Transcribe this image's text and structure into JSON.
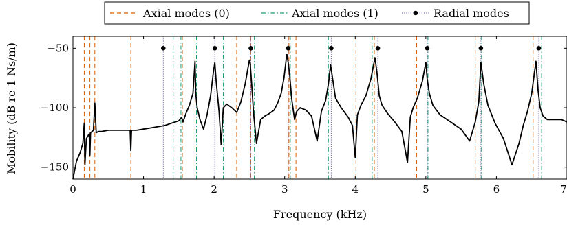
{
  "chart_data": {
    "type": "line",
    "title": "",
    "xlabel": "Frequency (kHz)",
    "ylabel": "Mobility (dB re 1 Ns/m)",
    "xlim": [
      0,
      7
    ],
    "ylim": [
      -160,
      -40
    ],
    "xticks": [
      0,
      1,
      2,
      3,
      4,
      5,
      6,
      7
    ],
    "xtick_labels": [
      "0",
      "1",
      "2",
      "3",
      "4",
      "5",
      "6",
      "7"
    ],
    "yticks": [
      -150,
      -100,
      -50
    ],
    "ytick_labels": [
      "−150",
      "−100",
      "−50"
    ],
    "grid": false,
    "legend": {
      "placement": "top-center",
      "entries": [
        {
          "label": "Axial modes (0)",
          "style": "dashed",
          "color": "#D95F02"
        },
        {
          "label": "Axial modes (1)",
          "style": "dash-dot",
          "color": "#1B9E77"
        },
        {
          "label": "Radial modes",
          "style": "dotted-marker",
          "color": "#7570B3"
        }
      ]
    },
    "axial_modes_0_khz": [
      0.16,
      0.24,
      0.31,
      0.82,
      1.55,
      1.73,
      2.32,
      2.52,
      3.06,
      3.16,
      4.01,
      4.27,
      4.87,
      5.7,
      6.52
    ],
    "axial_modes_1_khz": [
      1.42,
      1.53,
      1.75,
      2.13,
      2.57,
      3.08,
      3.62,
      4.24,
      5.03,
      5.79,
      6.64
    ],
    "radial_modes_khz": [
      1.28,
      2.01,
      2.52,
      3.05,
      3.66,
      4.32,
      5.02,
      5.78,
      6.6
    ],
    "radial_marker_level_db": -50,
    "response_curve": {
      "name": "Mobility",
      "color": "#000000",
      "x_khz": [
        0.0,
        0.05,
        0.1,
        0.14,
        0.16,
        0.17,
        0.19,
        0.21,
        0.23,
        0.24,
        0.25,
        0.27,
        0.29,
        0.31,
        0.33,
        0.36,
        0.4,
        0.5,
        0.6,
        0.7,
        0.81,
        0.82,
        0.83,
        0.9,
        1.0,
        1.1,
        1.2,
        1.3,
        1.4,
        1.5,
        1.54,
        1.56,
        1.6,
        1.65,
        1.7,
        1.73,
        1.74,
        1.76,
        1.8,
        1.85,
        1.9,
        1.95,
        1.99,
        2.01,
        2.03,
        2.07,
        2.1,
        2.13,
        2.18,
        2.25,
        2.32,
        2.38,
        2.44,
        2.5,
        2.51,
        2.53,
        2.56,
        2.6,
        2.66,
        2.72,
        2.78,
        2.85,
        2.9,
        2.95,
        2.99,
        3.03,
        3.05,
        3.07,
        3.1,
        3.14,
        3.17,
        3.22,
        3.3,
        3.38,
        3.46,
        3.52,
        3.58,
        3.62,
        3.65,
        3.68,
        3.72,
        3.8,
        3.9,
        3.96,
        4.0,
        4.03,
        4.08,
        4.15,
        4.22,
        4.28,
        4.31,
        4.34,
        4.38,
        4.46,
        4.56,
        4.66,
        4.74,
        4.78,
        4.82,
        4.88,
        4.95,
        5.0,
        5.02,
        5.05,
        5.1,
        5.2,
        5.35,
        5.5,
        5.62,
        5.7,
        5.75,
        5.78,
        5.82,
        5.88,
        5.98,
        6.1,
        6.22,
        6.32,
        6.38,
        6.44,
        6.5,
        6.56,
        6.59,
        6.62,
        6.66,
        6.72,
        6.82,
        6.92,
        7.0
      ],
      "y_db": [
        -160,
        -145,
        -138,
        -130,
        -113,
        -148,
        -126,
        -124,
        -122,
        -140,
        -121,
        -120,
        -119,
        -96,
        -121,
        -120,
        -120,
        -119,
        -119,
        -119,
        -119,
        -136,
        -119,
        -119,
        -118,
        -117,
        -116,
        -115,
        -113,
        -111,
        -108,
        -112,
        -105,
        -98,
        -88,
        -61,
        -88,
        -100,
        -110,
        -118,
        -106,
        -90,
        -70,
        -62,
        -78,
        -103,
        -131,
        -100,
        -97,
        -100,
        -104,
        -95,
        -80,
        -60,
        -62,
        -78,
        -105,
        -130,
        -110,
        -107,
        -105,
        -102,
        -96,
        -88,
        -75,
        -55,
        -62,
        -72,
        -93,
        -110,
        -103,
        -100,
        -102,
        -107,
        -128,
        -103,
        -94,
        -80,
        -64,
        -76,
        -92,
        -100,
        -108,
        -115,
        -142,
        -106,
        -98,
        -90,
        -76,
        -58,
        -72,
        -90,
        -98,
        -105,
        -112,
        -120,
        -146,
        -108,
        -100,
        -92,
        -78,
        -62,
        -76,
        -88,
        -98,
        -106,
        -112,
        -118,
        -128,
        -112,
        -95,
        -62,
        -80,
        -98,
        -113,
        -126,
        -148,
        -130,
        -115,
        -103,
        -88,
        -61,
        -85,
        -100,
        -107,
        -110,
        -110,
        -110,
        -112
      ]
    }
  }
}
